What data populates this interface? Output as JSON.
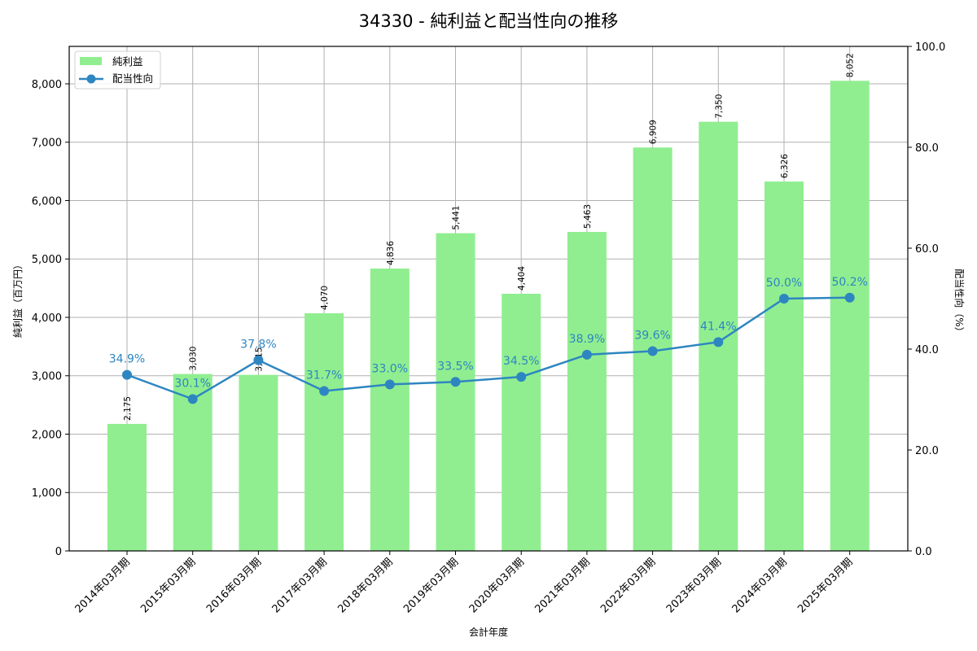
{
  "title": "34330 - 純利益と配当性向の推移",
  "colors": {
    "bar": "#90ee90",
    "line": "#2e86c1",
    "grid": "#b0b0b0",
    "axis": "#000000"
  },
  "legend": {
    "bar_label": "純利益",
    "line_label": "配当性向"
  },
  "chart_data": {
    "type": "bar+line",
    "title": "34330 - 純利益と配当性向の推移",
    "xlabel": "会計年度",
    "ylabel_left": "純利益（百万円）",
    "ylabel_right": "配当性向（%）",
    "categories": [
      "2014年03月期",
      "2015年03月期",
      "2016年03月期",
      "2017年03月期",
      "2018年03月期",
      "2019年03月期",
      "2020年03月期",
      "2021年03月期",
      "2022年03月期",
      "2023年03月期",
      "2024年03月期",
      "2025年03月期"
    ],
    "series": [
      {
        "name": "純利益",
        "type": "bar",
        "axis": "left",
        "values": [
          2175,
          3030,
          3015,
          4070,
          4836,
          5441,
          4404,
          5463,
          6909,
          7350,
          6326,
          8052
        ],
        "labels": [
          "2,175",
          "3,030",
          "3,015",
          "4,070",
          "4,836",
          "5,441",
          "4,404",
          "5,463",
          "6,909",
          "7,350",
          "6,326",
          "8,052"
        ]
      },
      {
        "name": "配当性向",
        "type": "line",
        "axis": "right",
        "values": [
          34.9,
          30.1,
          37.8,
          31.7,
          33.0,
          33.5,
          34.5,
          38.9,
          39.6,
          41.4,
          50.0,
          50.2
        ],
        "labels": [
          "34.9%",
          "30.1%",
          "37.8%",
          "31.7%",
          "33.0%",
          "33.5%",
          "34.5%",
          "38.9%",
          "39.6%",
          "41.4%",
          "50.0%",
          "50.2%"
        ]
      }
    ],
    "ylim_left": [
      0,
      8641
    ],
    "yticks_left": [
      "0",
      "1,000",
      "2,000",
      "3,000",
      "4,000",
      "5,000",
      "6,000",
      "7,000",
      "8,000"
    ],
    "ylim_right": [
      0,
      100
    ],
    "yticks_right": [
      "0.0",
      "20.0",
      "40.0",
      "60.0",
      "80.0",
      "100.0"
    ],
    "grid": true,
    "legend_position": "upper left"
  }
}
